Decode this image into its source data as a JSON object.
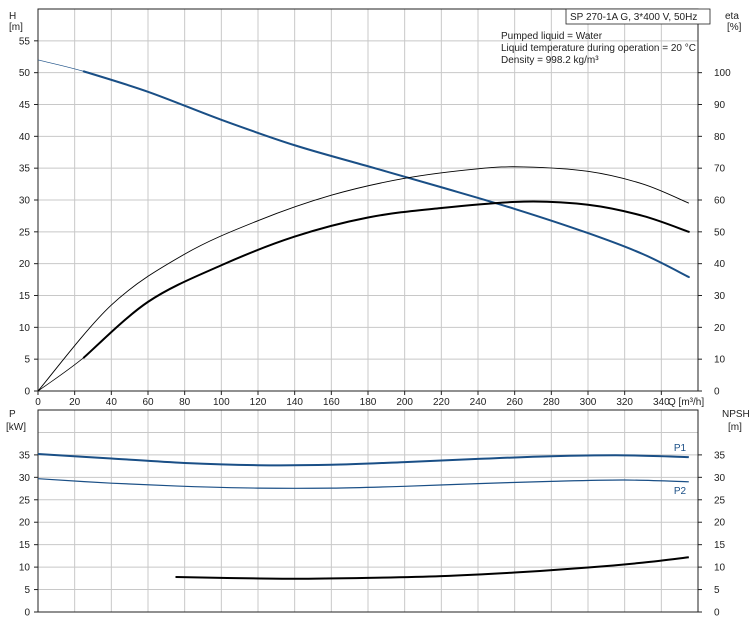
{
  "title_box": "SP 270-1A G, 3*400 V, 50Hz",
  "info_lines": [
    "Pumped liquid = Water",
    "Liquid temperature during operation = 20 °C",
    "Density = 998.2 kg/m³"
  ],
  "colors": {
    "blue": "#1a4f86",
    "black": "#000000",
    "grid": "#c8c8c8",
    "axis": "#222222"
  },
  "chart_data": [
    {
      "type": "line",
      "panel": "top",
      "xlabel": "Q [m³/h]",
      "ylabel_left": [
        "H",
        "[m]"
      ],
      "ylabel_right": [
        "eta",
        "[%]"
      ],
      "xlim": [
        0,
        360
      ],
      "ylim_left": [
        0,
        60
      ],
      "ylim_right": [
        0,
        120
      ],
      "x_ticks": [
        0,
        20,
        40,
        60,
        80,
        100,
        120,
        140,
        160,
        180,
        200,
        220,
        240,
        260,
        280,
        300,
        320,
        340
      ],
      "y_ticks_left": [
        0,
        5,
        10,
        15,
        20,
        25,
        30,
        35,
        40,
        45,
        50,
        55
      ],
      "y_ticks_right": [
        0,
        10,
        20,
        30,
        40,
        50,
        60,
        70,
        80,
        90,
        100
      ],
      "grid": true,
      "series": [
        {
          "axis": "left",
          "color": "#1a4f86",
          "width": 2,
          "thin_leader_until": 25,
          "x": [
            0,
            25,
            60,
            100,
            140,
            180,
            220,
            260,
            300,
            330,
            355
          ],
          "y": [
            52.0,
            50.2,
            47.0,
            42.6,
            38.6,
            35.3,
            32.0,
            28.6,
            24.8,
            21.5,
            17.9
          ]
        },
        {
          "axis": "right",
          "color": "#000000",
          "width": 0.9,
          "x": [
            0,
            40,
            80,
            120,
            160,
            200,
            240,
            265,
            300,
            330,
            355
          ],
          "y": [
            0,
            27,
            43,
            53.5,
            61.5,
            66.8,
            69.8,
            70.4,
            69,
            65,
            59
          ]
        },
        {
          "axis": "right",
          "color": "#000000",
          "width": 2,
          "thin_leader_until": 25,
          "x": [
            0,
            25,
            60,
            100,
            140,
            180,
            220,
            265,
            300,
            330,
            355
          ],
          "y": [
            0,
            10.5,
            28,
            39.5,
            48.5,
            54.5,
            57.5,
            59.5,
            58.5,
            55,
            50
          ]
        }
      ]
    },
    {
      "type": "line",
      "panel": "bottom",
      "ylabel_left": [
        "P",
        "[kW]"
      ],
      "ylabel_right": [
        "NPSH",
        "[m]"
      ],
      "xlim": [
        0,
        360
      ],
      "ylim": [
        0,
        45
      ],
      "y_ticks": [
        0,
        5,
        10,
        15,
        20,
        25,
        30,
        35
      ],
      "grid": true,
      "series": [
        {
          "name": "P1",
          "color": "#1a4f86",
          "width": 2,
          "x": [
            0,
            40,
            80,
            120,
            160,
            200,
            240,
            280,
            320,
            355
          ],
          "y": [
            35.2,
            34.2,
            33.2,
            32.7,
            32.8,
            33.4,
            34.1,
            34.7,
            34.9,
            34.5
          ]
        },
        {
          "name": "P2",
          "color": "#1a4f86",
          "width": 1.2,
          "x": [
            0,
            40,
            80,
            120,
            160,
            200,
            240,
            280,
            320,
            355
          ],
          "y": [
            29.7,
            28.7,
            28.0,
            27.6,
            27.6,
            28.0,
            28.6,
            29.1,
            29.4,
            29.0
          ]
        },
        {
          "name": "NPSH",
          "color": "#000000",
          "width": 2,
          "x": [
            75,
            100,
            140,
            180,
            220,
            260,
            300,
            330,
            355
          ],
          "y": [
            7.8,
            7.6,
            7.4,
            7.6,
            8.0,
            8.8,
            9.9,
            11.0,
            12.2
          ]
        }
      ]
    }
  ]
}
